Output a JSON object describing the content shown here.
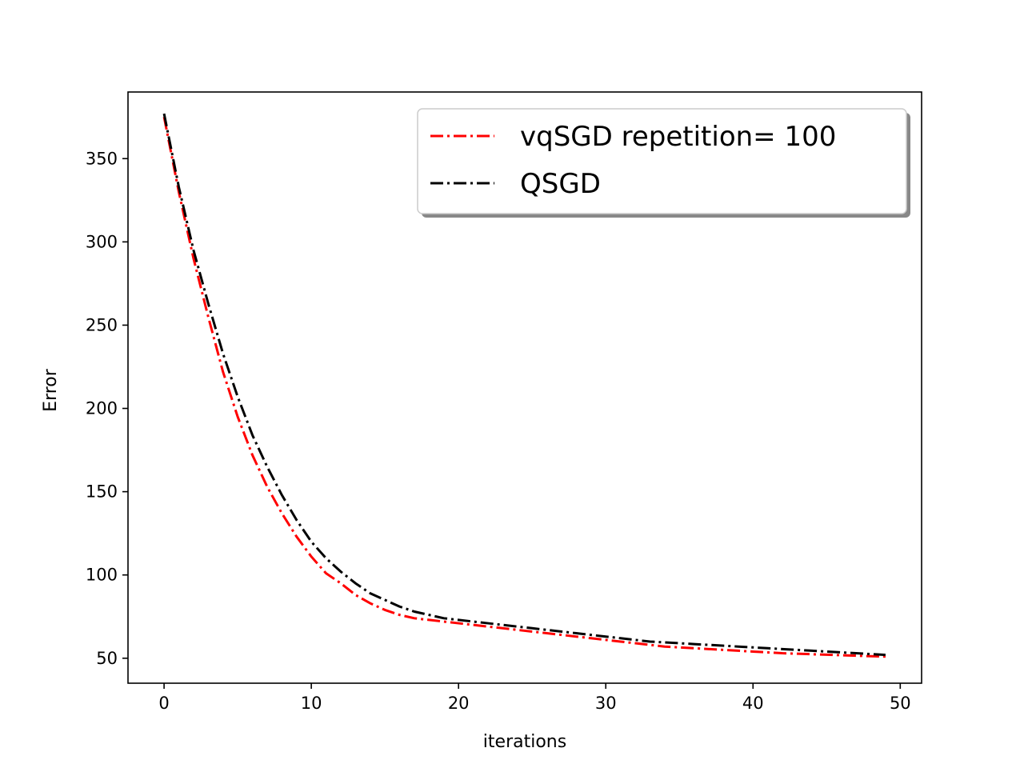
{
  "chart_data": {
    "type": "line",
    "title": "",
    "xlabel": "iterations",
    "ylabel": "Error",
    "xlim": [
      -2.45,
      51.45
    ],
    "ylim": [
      35,
      390
    ],
    "xticks": [
      0,
      10,
      20,
      30,
      40,
      50
    ],
    "yticks": [
      50,
      100,
      150,
      200,
      250,
      300,
      350
    ],
    "grid": false,
    "legend_position": "top-right",
    "series": [
      {
        "name": "vqSGD repetition= 100",
        "color": "#ff0000",
        "linestyle": "dashdot",
        "x": [
          0,
          1,
          2,
          3,
          4,
          5,
          6,
          7,
          8,
          9,
          10,
          11,
          12,
          13,
          14,
          15,
          16,
          17,
          18,
          19,
          20,
          21,
          22,
          23,
          24,
          25,
          26,
          27,
          28,
          29,
          30,
          31,
          32,
          33,
          34,
          35,
          36,
          37,
          38,
          39,
          40,
          41,
          42,
          43,
          44,
          45,
          46,
          47,
          48,
          49
        ],
        "y": [
          375,
          330,
          290,
          255,
          222,
          195,
          172,
          153,
          137,
          123,
          111,
          101,
          95,
          88,
          83,
          79,
          76,
          74,
          73,
          72,
          71,
          70,
          69,
          68,
          67,
          66,
          65,
          64,
          63,
          62,
          61,
          60,
          59,
          58,
          57,
          56.5,
          56,
          55.5,
          55,
          54.5,
          54,
          53.5,
          53,
          52.7,
          52.4,
          52.1,
          51.8,
          51.5,
          51.2,
          51
        ]
      },
      {
        "name": "QSGD",
        "color": "#000000",
        "linestyle": "dashdot",
        "x": [
          0,
          1,
          2,
          3,
          4,
          5,
          6,
          7,
          8,
          9,
          10,
          11,
          12,
          13,
          14,
          15,
          16,
          17,
          18,
          19,
          20,
          21,
          22,
          23,
          24,
          25,
          26,
          27,
          28,
          29,
          30,
          31,
          32,
          33,
          34,
          35,
          36,
          37,
          38,
          39,
          40,
          41,
          42,
          43,
          44,
          45,
          46,
          47,
          48,
          49
        ],
        "y": [
          377,
          333,
          295,
          263,
          233,
          207,
          184,
          165,
          148,
          133,
          120,
          110,
          102,
          95,
          89,
          85,
          81,
          78,
          76,
          74,
          73,
          72,
          71,
          70,
          69,
          68,
          67,
          66,
          65,
          64,
          63,
          62,
          61,
          60,
          59.5,
          59,
          58.5,
          58,
          57.5,
          57,
          56.5,
          56,
          55.5,
          55,
          54.5,
          54,
          53.5,
          53,
          52.5,
          52
        ]
      }
    ]
  }
}
